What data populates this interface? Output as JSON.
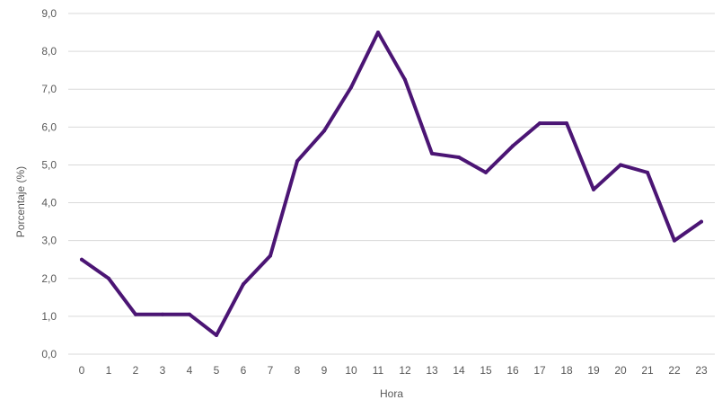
{
  "chart_data": {
    "type": "line",
    "title": "",
    "xlabel": "Hora",
    "ylabel": "Porcentaje (%)",
    "categories": [
      "0",
      "1",
      "2",
      "3",
      "4",
      "5",
      "6",
      "7",
      "8",
      "9",
      "10",
      "11",
      "12",
      "13",
      "14",
      "15",
      "16",
      "17",
      "18",
      "19",
      "20",
      "21",
      "22",
      "23"
    ],
    "y_tick_labels": [
      "0,0",
      "1,0",
      "2,0",
      "3,0",
      "4,0",
      "5,0",
      "6,0",
      "7,0",
      "8,0",
      "9,0"
    ],
    "ylim": [
      0,
      9
    ],
    "grid": true,
    "legend": "none",
    "series": [
      {
        "color": "#4b1574",
        "values": [
          2.5,
          2.0,
          1.05,
          1.05,
          1.05,
          0.5,
          1.85,
          2.6,
          5.1,
          5.9,
          7.05,
          8.5,
          7.25,
          5.3,
          5.2,
          4.8,
          5.5,
          6.1,
          6.1,
          4.35,
          5.0,
          4.8,
          3.0,
          3.5
        ]
      }
    ]
  },
  "colors": {
    "line": "#4b1574",
    "grid": "#d9d9d9",
    "text": "#595959"
  }
}
